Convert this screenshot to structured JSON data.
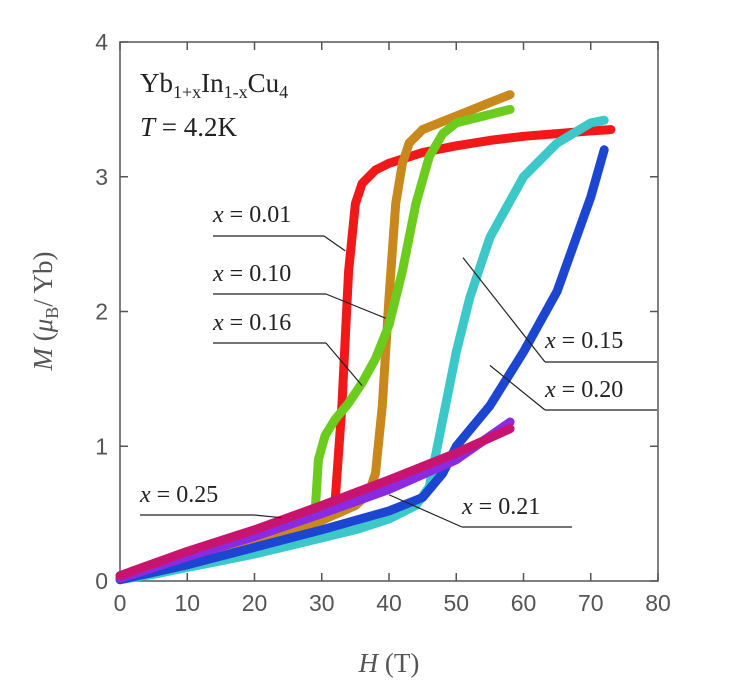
{
  "chart_data": {
    "type": "scatter",
    "title": "",
    "xlabel": {
      "symbol": "H",
      "unit": " (T)"
    },
    "ylabel": {
      "symbol": "M",
      "open": " (",
      "mu": "μ",
      "sub": "B",
      "unit": "/ Yb)"
    },
    "xlim": [
      0,
      80
    ],
    "ylim": [
      0,
      4
    ],
    "xticks": [
      "0",
      "10",
      "20",
      "30",
      "40",
      "50",
      "60",
      "70",
      "80"
    ],
    "yticks": [
      "0",
      "1",
      "2",
      "3",
      "4"
    ],
    "grid": false,
    "legend": "none",
    "info": {
      "formula": {
        "a": "Yb",
        "b": "1+x",
        "c": "In",
        "d": "1-x",
        "e": "Cu",
        "f": "4"
      },
      "temperature": {
        "symbol": "T",
        "value": " = 4.2K"
      }
    },
    "series": [
      {
        "label": "x = 0.01",
        "color": "#f01818",
        "points": [
          [
            0,
            0.02
          ],
          [
            5,
            0.09
          ],
          [
            10,
            0.17
          ],
          [
            15,
            0.24
          ],
          [
            20,
            0.3
          ],
          [
            25,
            0.37
          ],
          [
            28,
            0.42
          ],
          [
            30,
            0.46
          ],
          [
            31,
            0.5
          ],
          [
            32,
            0.6
          ],
          [
            33,
            1.3
          ],
          [
            34,
            2.3
          ],
          [
            35,
            2.8
          ],
          [
            36,
            2.95
          ],
          [
            38,
            3.05
          ],
          [
            40,
            3.1
          ],
          [
            45,
            3.18
          ],
          [
            50,
            3.23
          ],
          [
            55,
            3.27
          ],
          [
            60,
            3.3
          ],
          [
            65,
            3.32
          ],
          [
            70,
            3.34
          ],
          [
            73,
            3.35
          ]
        ]
      },
      {
        "label": "x = 0.10",
        "color": "#c8881c",
        "points": [
          [
            0,
            0.02
          ],
          [
            5,
            0.09
          ],
          [
            10,
            0.16
          ],
          [
            15,
            0.23
          ],
          [
            20,
            0.3
          ],
          [
            25,
            0.37
          ],
          [
            30,
            0.45
          ],
          [
            35,
            0.56
          ],
          [
            37,
            0.65
          ],
          [
            38,
            0.8
          ],
          [
            39,
            1.3
          ],
          [
            40,
            2.1
          ],
          [
            41,
            2.8
          ],
          [
            42,
            3.1
          ],
          [
            43,
            3.25
          ],
          [
            45,
            3.35
          ],
          [
            50,
            3.45
          ],
          [
            55,
            3.55
          ],
          [
            58,
            3.61
          ]
        ]
      },
      {
        "label": "x = 0.16",
        "color": "#6ccc1e",
        "points": [
          [
            29,
            0.5
          ],
          [
            29.5,
            0.9
          ],
          [
            30.5,
            1.08
          ],
          [
            32,
            1.2
          ],
          [
            34,
            1.32
          ],
          [
            36,
            1.47
          ],
          [
            38,
            1.65
          ],
          [
            40,
            1.9
          ],
          [
            42,
            2.3
          ],
          [
            44,
            2.8
          ],
          [
            46,
            3.15
          ],
          [
            48,
            3.32
          ],
          [
            50,
            3.4
          ],
          [
            54,
            3.45
          ],
          [
            58,
            3.5
          ]
        ]
      },
      {
        "label": "x = 0.15",
        "color": "#3cc8c8",
        "points": [
          [
            0,
            0.01
          ],
          [
            5,
            0.05
          ],
          [
            10,
            0.1
          ],
          [
            15,
            0.15
          ],
          [
            20,
            0.2
          ],
          [
            25,
            0.26
          ],
          [
            30,
            0.32
          ],
          [
            35,
            0.38
          ],
          [
            40,
            0.46
          ],
          [
            44,
            0.56
          ],
          [
            46,
            0.7
          ],
          [
            48,
            1.2
          ],
          [
            50,
            1.7
          ],
          [
            52,
            2.1
          ],
          [
            55,
            2.55
          ],
          [
            60,
            3
          ],
          [
            65,
            3.25
          ],
          [
            70,
            3.4
          ],
          [
            72,
            3.42
          ]
        ]
      },
      {
        "label": "x = 0.20",
        "color": "#1c46d2",
        "points": [
          [
            0,
            0.01
          ],
          [
            10,
            0.12
          ],
          [
            20,
            0.25
          ],
          [
            30,
            0.38
          ],
          [
            40,
            0.52
          ],
          [
            45,
            0.62
          ],
          [
            48,
            0.8
          ],
          [
            50,
            1
          ],
          [
            55,
            1.3
          ],
          [
            60,
            1.7
          ],
          [
            65,
            2.15
          ],
          [
            70,
            2.85
          ],
          [
            72,
            3.2
          ]
        ]
      },
      {
        "label": "x = 0.21",
        "color": "#8a2be2",
        "points": [
          [
            0,
            0.02
          ],
          [
            10,
            0.18
          ],
          [
            20,
            0.33
          ],
          [
            30,
            0.5
          ],
          [
            40,
            0.68
          ],
          [
            50,
            0.9
          ],
          [
            58,
            1.18
          ]
        ]
      },
      {
        "label": "x = 0.25",
        "color": "#c8146e",
        "points": [
          [
            0,
            0.04
          ],
          [
            10,
            0.22
          ],
          [
            20,
            0.38
          ],
          [
            30,
            0.56
          ],
          [
            40,
            0.75
          ],
          [
            50,
            0.95
          ],
          [
            58,
            1.13
          ]
        ]
      }
    ],
    "annotations": [
      {
        "name": "x",
        "value": " = 0.01",
        "target": [
          33.5,
          2.45
        ]
      },
      {
        "name": "x",
        "value": " = 0.10",
        "target": [
          39.5,
          1.95
        ]
      },
      {
        "name": "x",
        "value": " = 0.16",
        "target": [
          36,
          1.45
        ]
      },
      {
        "name": "x",
        "value": " = 0.15",
        "target": [
          51,
          2.4
        ]
      },
      {
        "name": "x",
        "value": " = 0.20",
        "target": [
          55,
          1.6
        ]
      },
      {
        "name": "x",
        "value": " = 0.21",
        "target": [
          40,
          0.64
        ]
      },
      {
        "name": "x",
        "value": " = 0.25",
        "target": [
          24,
          0.47
        ]
      }
    ]
  }
}
